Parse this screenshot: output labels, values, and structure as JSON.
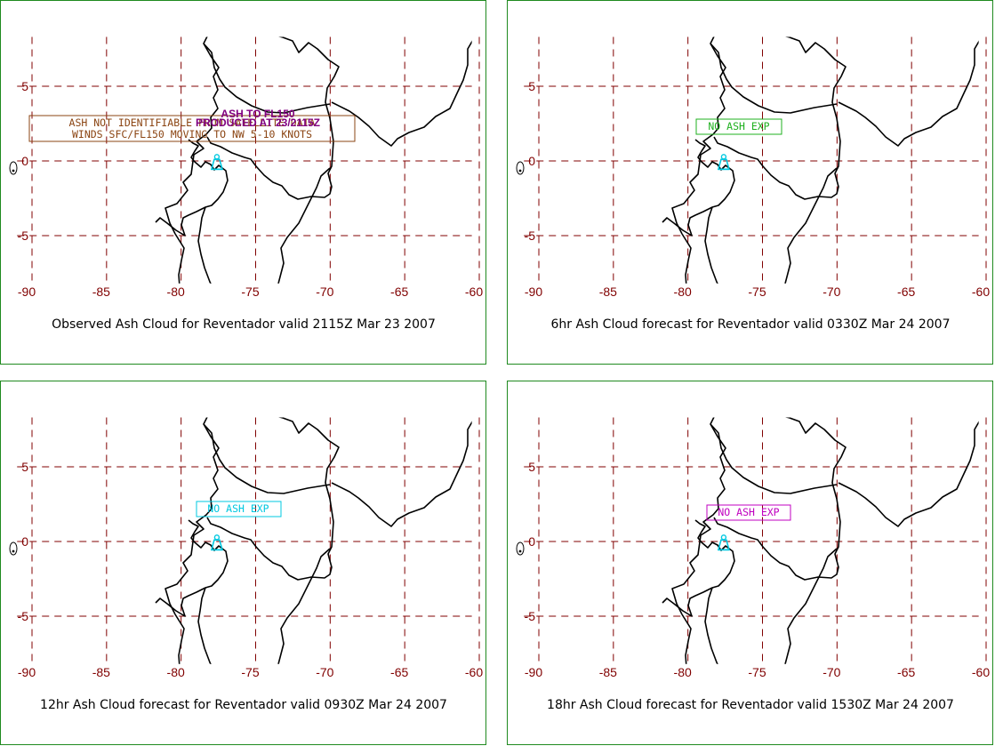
{
  "colors": {
    "border": "#1f8a1f",
    "grid": "#800000",
    "coast": "#000000",
    "volcano": "#00c8e0",
    "observed_box": "#8b4513",
    "advisory_text": "#800080"
  },
  "map": {
    "lon_range": [
      -91,
      -60.5
    ],
    "lat_range": [
      -8.2,
      8.3
    ],
    "lat_ticks": [
      5,
      0,
      -5
    ],
    "lon_ticks": [
      -90,
      -85,
      -80,
      -75,
      -70,
      -65,
      -60
    ],
    "lat_tick_labels": [
      "5",
      "0",
      "-5"
    ],
    "lon_tick_labels": [
      "-90",
      "-85",
      "-80",
      "-75",
      "-70",
      "-65",
      "-60"
    ],
    "volcano": {
      "name": "Reventador",
      "lon": -77.6,
      "lat": -0.08,
      "icon": "volcano-icon"
    }
  },
  "panels": [
    {
      "caption": "Observed Ash Cloud for Reventador valid 2115Z Mar 23 2007",
      "box_lines": [
        "ASH NOT IDENTIFIABLE FROM SATELLITE DATA",
        "WINDS SFC/FL150 MOVING TO NW 5-10 KNOTS"
      ],
      "box_color": "#8b4513",
      "advisory_lines": [
        "ASH TO FL150",
        "PRODUCED AT 23/2115Z"
      ]
    },
    {
      "caption": "6hr Ash Cloud forecast for Reventador valid 0330Z Mar 24 2007",
      "box_lines": [
        "NO ASH EXP"
      ],
      "box_color": "#1fb01f"
    },
    {
      "caption": "12hr Ash Cloud forecast for Reventador valid 0930Z Mar 24 2007",
      "box_lines": [
        "NO ASH EXP"
      ],
      "box_color": "#00c8e0"
    },
    {
      "caption": "18hr Ash Cloud forecast for Reventador valid 1530Z Mar 24 2007",
      "box_lines": [
        "NO ASH EXP"
      ],
      "box_color": "#c000c0"
    }
  ]
}
